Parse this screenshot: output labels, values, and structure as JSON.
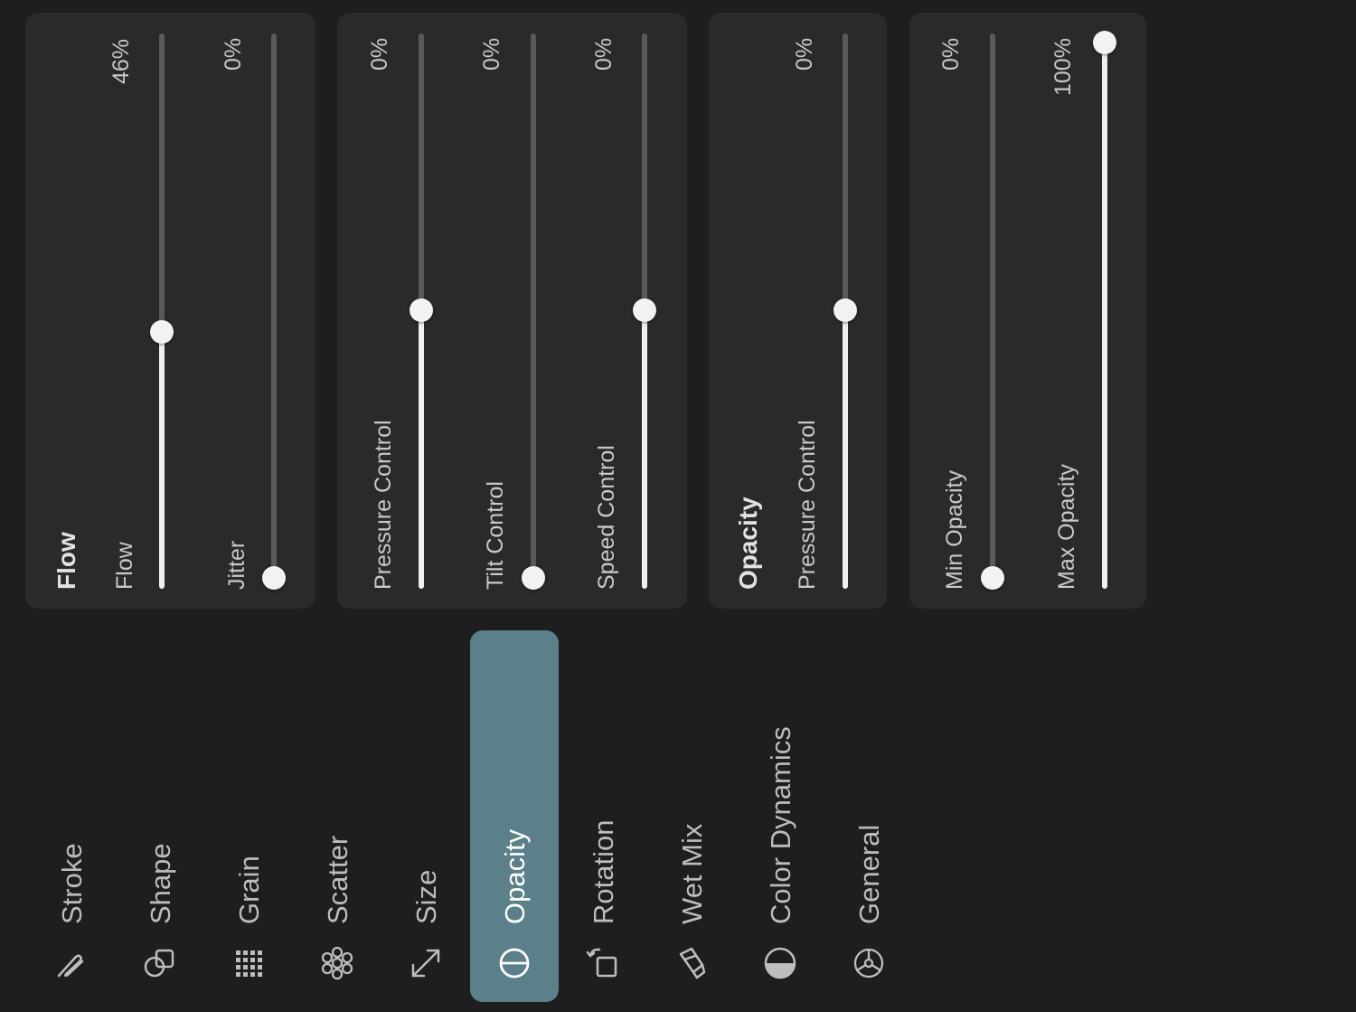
{
  "panel_flow": {
    "heading": "Flow",
    "sliders": [
      {
        "label": "Flow",
        "value_text": "46%",
        "value": 0.46
      },
      {
        "label": "Jitter",
        "value_text": "0%",
        "value": 0.0
      }
    ]
  },
  "panel_controls": {
    "sliders": [
      {
        "label": "Pressure Control",
        "value_text": "0%",
        "value": 0.5
      },
      {
        "label": "Tilt Control",
        "value_text": "0%",
        "value": 0.0
      },
      {
        "label": "Speed Control",
        "value_text": "0%",
        "value": 0.5
      }
    ]
  },
  "panel_opacity": {
    "heading": "Opacity",
    "sliders": [
      {
        "label": "Pressure Control",
        "value_text": "0%",
        "value": 0.5
      }
    ]
  },
  "panel_minmax": {
    "sliders": [
      {
        "label": "Min Opacity",
        "value_text": "0%",
        "value": 0.0
      },
      {
        "label": "Max Opacity",
        "value_text": "100%",
        "value": 1.0
      }
    ]
  },
  "nav": {
    "items": [
      {
        "label": "Stroke",
        "icon": "stroke-icon"
      },
      {
        "label": "Shape",
        "icon": "shape-icon"
      },
      {
        "label": "Grain",
        "icon": "grain-icon"
      },
      {
        "label": "Scatter",
        "icon": "scatter-icon"
      },
      {
        "label": "Size",
        "icon": "size-icon"
      },
      {
        "label": "Opacity",
        "icon": "opacity-icon",
        "selected": true
      },
      {
        "label": "Rotation",
        "icon": "rotation-icon"
      },
      {
        "label": "Wet Mix",
        "icon": "wet-mix-icon"
      },
      {
        "label": "Color Dynamics",
        "icon": "color-dynamics-icon"
      },
      {
        "label": "General",
        "icon": "general-icon"
      }
    ],
    "selected_color": "#5b808a"
  }
}
